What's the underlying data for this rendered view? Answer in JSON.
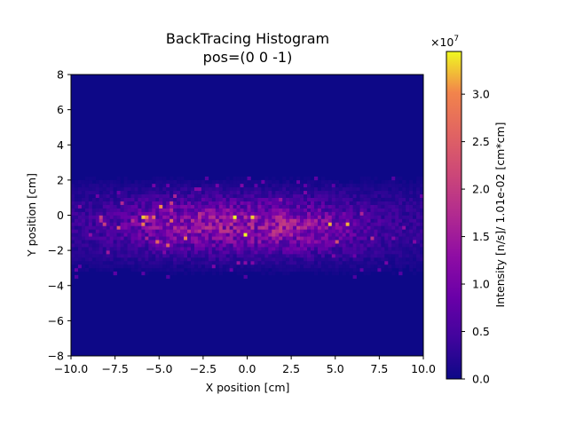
{
  "chart_data": {
    "type": "heatmap",
    "title": "BackTracing Histogram",
    "subtitle": "pos=(0 0 -1)",
    "xlabel": "X position [cm]",
    "ylabel": "Y position [cm]",
    "xlim": [
      -10,
      10
    ],
    "ylim": [
      -8,
      8
    ],
    "xticks": [
      -10.0,
      -7.5,
      -5.0,
      -2.5,
      0.0,
      2.5,
      5.0,
      7.5,
      10.0
    ],
    "xtick_labels": [
      "−10.0",
      "−7.5",
      "−5.0",
      "−2.5",
      "0.0",
      "2.5",
      "5.0",
      "7.5",
      "10.0"
    ],
    "yticks": [
      -8,
      -6,
      -4,
      -2,
      0,
      2,
      4,
      6,
      8
    ],
    "ytick_labels": [
      "−8",
      "−6",
      "−4",
      "−2",
      "0",
      "2",
      "4",
      "6",
      "8"
    ],
    "grid": false,
    "colormap": "plasma",
    "colorbar": {
      "label": "Intensity [n/s]/ 1.01e-02 [cm*cm]",
      "offset_text": "×10",
      "offset_exponent": "7",
      "range": [
        0.0,
        3.45
      ],
      "ticks": [
        0.0,
        0.5,
        1.0,
        1.5,
        2.0,
        2.5,
        3.0
      ],
      "tick_labels": [
        "0.0",
        "0.5",
        "1.0",
        "1.5",
        "2.0",
        "2.5",
        "3.0"
      ]
    },
    "distribution": {
      "band_y_range": [
        -3.5,
        2.3
      ],
      "band_center_y": -0.5,
      "hotspots": [
        {
          "x": 2.5,
          "y": -0.7,
          "peak": 1.2
        },
        {
          "x": -3.5,
          "y": -0.5,
          "peak": 1.1
        }
      ],
      "max_value": 3.45
    }
  }
}
